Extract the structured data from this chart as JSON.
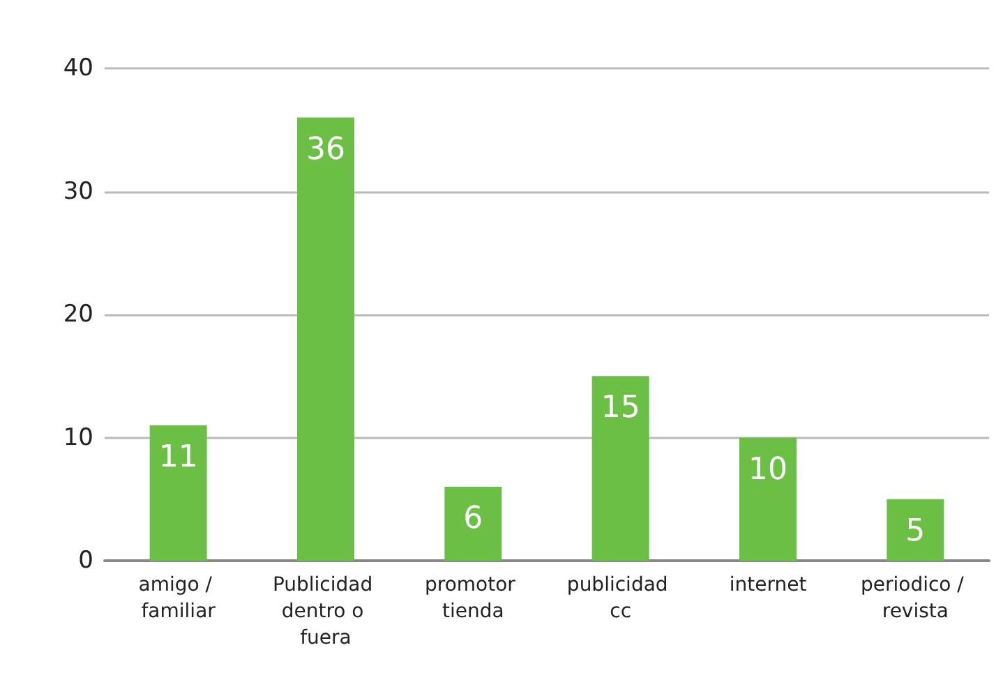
{
  "chart_data": {
    "type": "bar",
    "categories": [
      "amigo / familiar",
      "Publicidad dentro o fuera",
      "promotor tienda",
      "publicidad cc",
      "internet",
      "periodico / revista"
    ],
    "values": [
      11,
      36,
      6,
      15,
      10,
      5
    ],
    "color": "#6cbf45",
    "ylim": [
      0,
      40
    ],
    "yticks": [
      0,
      10,
      20,
      30,
      40
    ],
    "grid": "y",
    "data_labels": true
  }
}
